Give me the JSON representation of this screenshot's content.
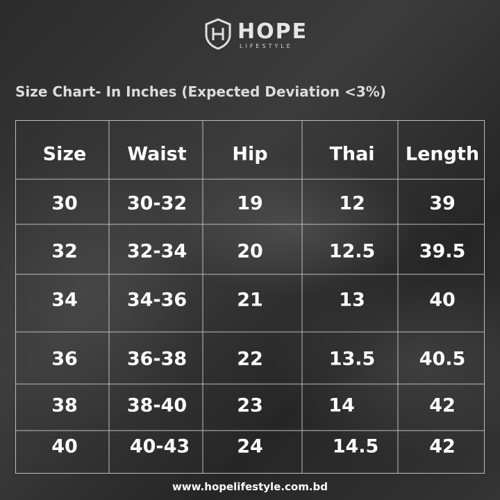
{
  "logo": {
    "name": "HOPE",
    "tagline": "LIFESTYLE"
  },
  "title": "Size Chart- In Inches (Expected Deviation <3%)",
  "table": {
    "header": [
      "Size",
      "Waist",
      "Hip",
      "Thai",
      "Length"
    ],
    "rows": [
      [
        "30",
        "30-32",
        "19",
        "12",
        "39"
      ],
      [
        "32",
        "32-34",
        "20",
        "12.5",
        "39.5"
      ],
      [
        "34",
        "34-36",
        "21",
        "13",
        "40"
      ],
      [
        "36",
        "36-38",
        "22",
        "13.5",
        "40.5"
      ],
      [
        "38",
        "38-40",
        "23",
        "14",
        "42"
      ],
      [
        "40",
        "40-43",
        "24",
        "14.5",
        "42"
      ]
    ]
  },
  "footer": {
    "url": "www.hopelifestyle.com.bd"
  }
}
